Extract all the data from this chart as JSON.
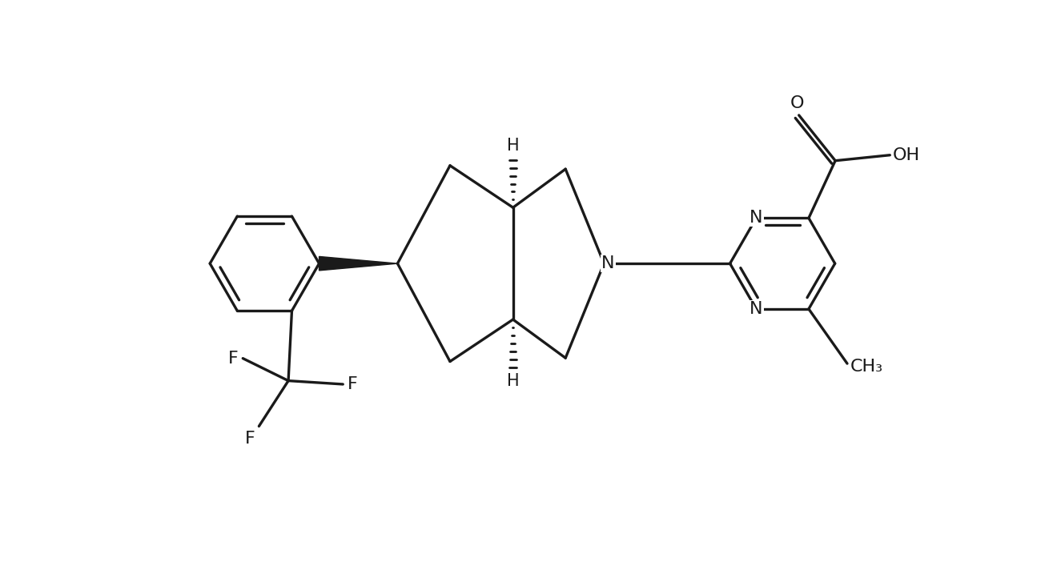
{
  "background_color": "#ffffff",
  "line_color": "#1a1a1a",
  "line_width": 2.4,
  "font_size": 16,
  "figsize": [
    13.25,
    7.02
  ],
  "dpi": 100,
  "xlim": [
    -0.5,
    13.0
  ],
  "ylim": [
    -0.5,
    7.5
  ]
}
